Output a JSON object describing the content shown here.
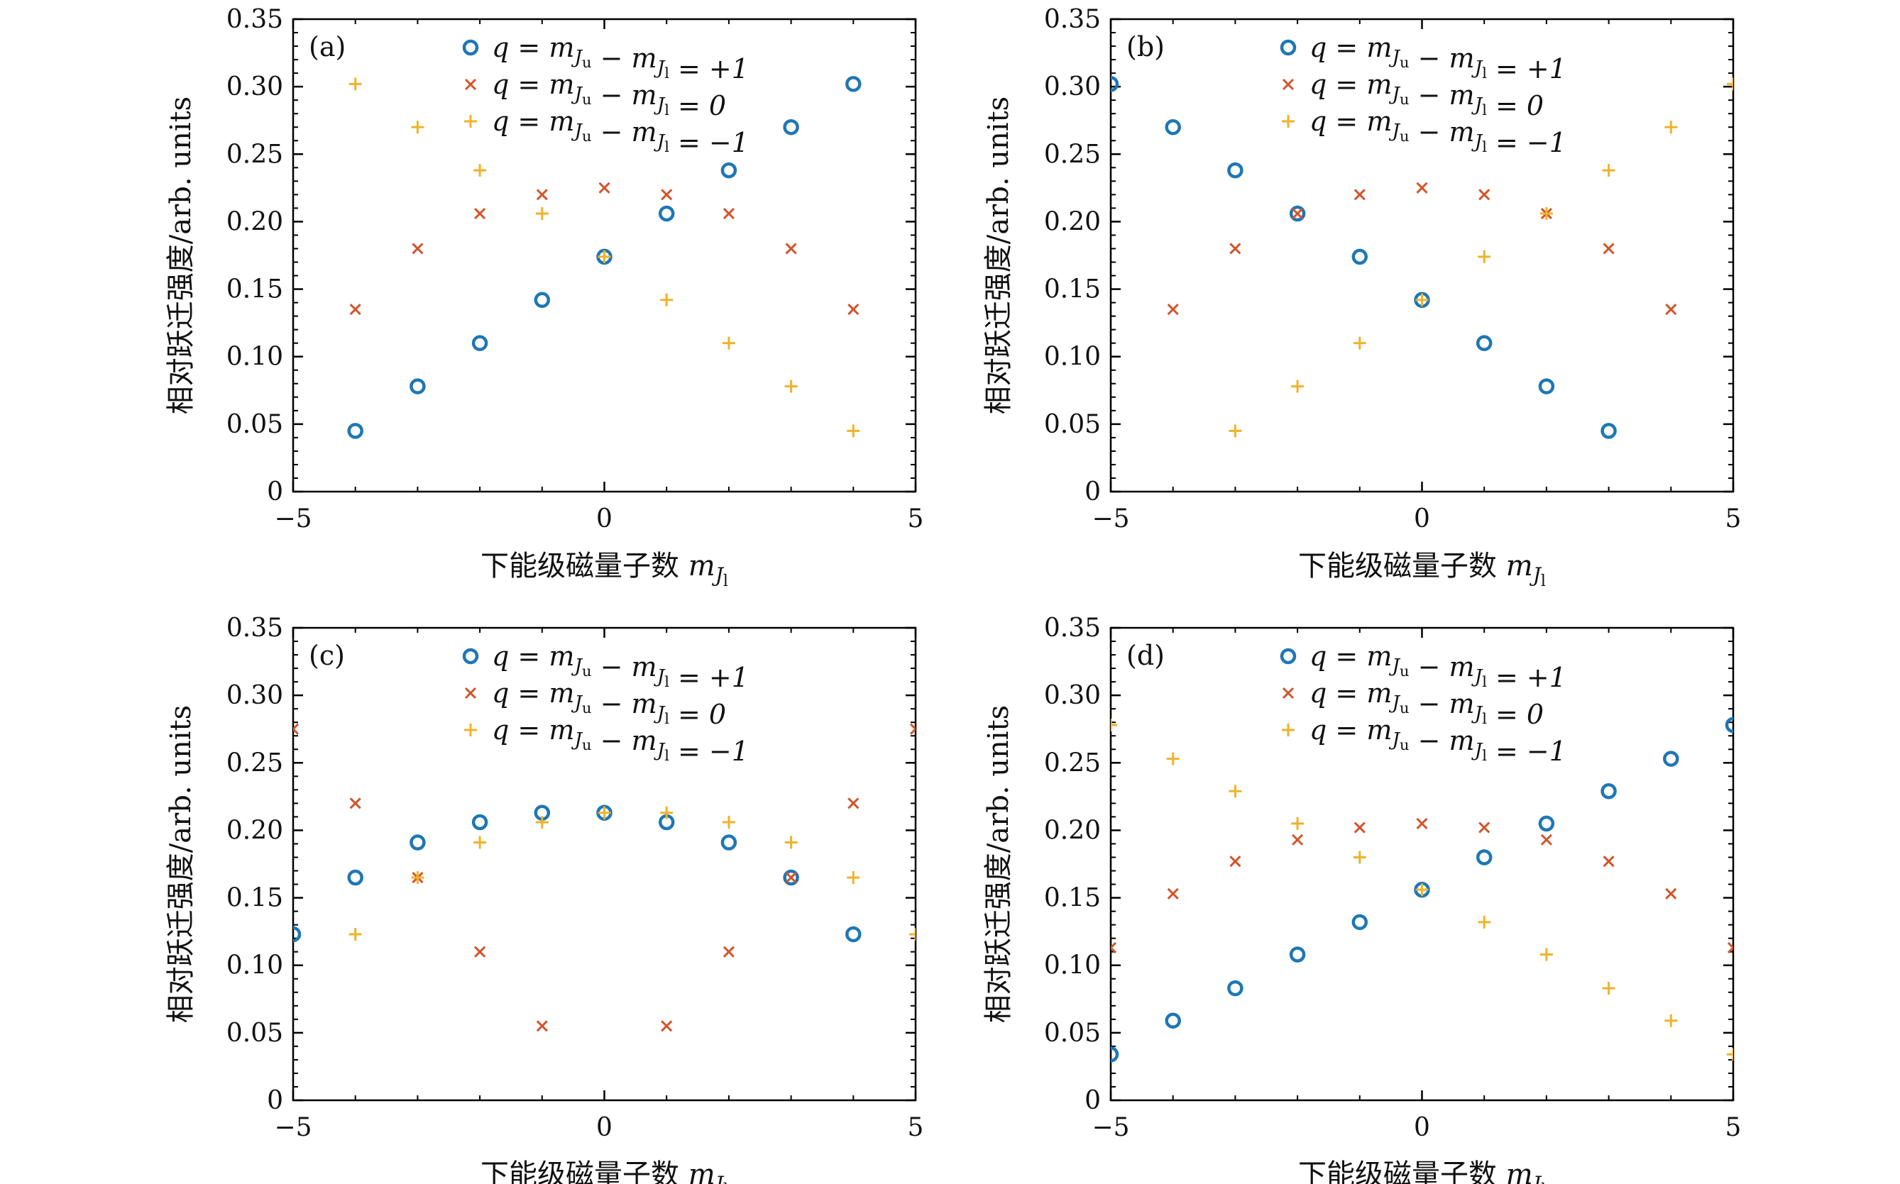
{
  "colors": {
    "q_plus1": "#1f77b4",
    "q_0": "#d2542a",
    "q_minus1": "#f0b22a"
  },
  "chart_data": [
    {
      "type": "scatter",
      "panel_label": "(a)",
      "xlabel": "下能级磁量子数 m_{J_l}",
      "ylabel": "相对跃迁强度/arb. units",
      "xlim": [
        -5,
        5
      ],
      "ylim": [
        0,
        0.35
      ],
      "xticks": [
        "−5",
        "0",
        "5"
      ],
      "yticks": [
        "0",
        "0.05",
        "0.10",
        "0.15",
        "0.20",
        "0.25",
        "0.30",
        "0.35"
      ],
      "legend_placement": "top-center",
      "series": [
        {
          "name": "q = m_{J_u} − m_{J_l} = +1",
          "marker": "circle",
          "x": [
            -4,
            -3,
            -2,
            -1,
            0,
            1,
            2,
            3,
            4
          ],
          "y": [
            0.045,
            0.078,
            0.11,
            0.142,
            0.174,
            0.206,
            0.238,
            0.27,
            0.302
          ]
        },
        {
          "name": "q = m_{J_u} − m_{J_l} = 0",
          "marker": "x",
          "x": [
            -4,
            -3,
            -2,
            -1,
            0,
            1,
            2,
            3,
            4
          ],
          "y": [
            0.135,
            0.18,
            0.206,
            0.22,
            0.225,
            0.22,
            0.206,
            0.18,
            0.135
          ]
        },
        {
          "name": "q = m_{J_u} − m_{J_l} = −1",
          "marker": "plus",
          "x": [
            -4,
            -3,
            -2,
            -1,
            0,
            1,
            2,
            3,
            4
          ],
          "y": [
            0.302,
            0.27,
            0.238,
            0.206,
            0.174,
            0.142,
            0.11,
            0.078,
            0.045
          ]
        }
      ]
    },
    {
      "type": "scatter",
      "panel_label": "(b)",
      "xlabel": "下能级磁量子数 m_{J_l}",
      "ylabel": "相对跃迁强度/arb. units",
      "xlim": [
        -5,
        5
      ],
      "ylim": [
        0,
        0.35
      ],
      "xticks": [
        "−5",
        "0",
        "5"
      ],
      "yticks": [
        "0",
        "0.05",
        "0.10",
        "0.15",
        "0.20",
        "0.25",
        "0.30",
        "0.35"
      ],
      "legend_placement": "top-center",
      "series": [
        {
          "name": "q = m_{J_u} − m_{J_l} = +1",
          "marker": "circle",
          "x": [
            -5,
            -4,
            -3,
            -2,
            -1,
            0,
            1,
            2,
            3
          ],
          "y": [
            0.302,
            0.27,
            0.238,
            0.206,
            0.174,
            0.142,
            0.11,
            0.078,
            0.045
          ]
        },
        {
          "name": "q = m_{J_u} − m_{J_l} = 0",
          "marker": "x",
          "x": [
            -4,
            -3,
            -2,
            -1,
            0,
            1,
            2,
            3,
            4
          ],
          "y": [
            0.135,
            0.18,
            0.206,
            0.22,
            0.225,
            0.22,
            0.206,
            0.18,
            0.135
          ]
        },
        {
          "name": "q = m_{J_u} − m_{J_l} = −1",
          "marker": "plus",
          "x": [
            -3,
            -2,
            -1,
            0,
            1,
            2,
            3,
            4,
            5
          ],
          "y": [
            0.045,
            0.078,
            0.11,
            0.142,
            0.174,
            0.206,
            0.238,
            0.27,
            0.302
          ]
        }
      ]
    },
    {
      "type": "scatter",
      "panel_label": "(c)",
      "xlabel": "下能级磁量子数 m_{J_l}",
      "ylabel": "相对跃迁强度/arb. units",
      "xlim": [
        -5,
        5
      ],
      "ylim": [
        0,
        0.35
      ],
      "xticks": [
        "−5",
        "0",
        "5"
      ],
      "yticks": [
        "0",
        "0.05",
        "0.10",
        "0.15",
        "0.20",
        "0.25",
        "0.30",
        "0.35"
      ],
      "legend_placement": "top-center",
      "series": [
        {
          "name": "q = m_{J_u} − m_{J_l} = +1",
          "marker": "circle",
          "x": [
            -5,
            -4,
            -3,
            -2,
            -1,
            0,
            1,
            2,
            3,
            4
          ],
          "y": [
            0.123,
            0.165,
            0.191,
            0.206,
            0.213,
            0.213,
            0.206,
            0.191,
            0.165,
            0.123
          ]
        },
        {
          "name": "q = m_{J_u} − m_{J_l} = 0",
          "marker": "x",
          "x": [
            -5,
            -4,
            -3,
            -2,
            -1,
            1,
            2,
            3,
            4,
            5
          ],
          "y": [
            0.275,
            0.22,
            0.165,
            0.11,
            0.055,
            0.055,
            0.11,
            0.165,
            0.22,
            0.275
          ]
        },
        {
          "name": "q = m_{J_u} − m_{J_l} = −1",
          "marker": "plus",
          "x": [
            -4,
            -3,
            -2,
            -1,
            0,
            1,
            2,
            3,
            4,
            5
          ],
          "y": [
            0.123,
            0.165,
            0.191,
            0.206,
            0.213,
            0.213,
            0.206,
            0.191,
            0.165,
            0.123
          ]
        }
      ]
    },
    {
      "type": "scatter",
      "panel_label": "(d)",
      "xlabel": "下能级磁量子数 m_{J_l}",
      "ylabel": "相对跃迁强度/arb. units",
      "xlim": [
        -5,
        5
      ],
      "ylim": [
        0,
        0.35
      ],
      "xticks": [
        "−5",
        "0",
        "5"
      ],
      "yticks": [
        "0",
        "0.05",
        "0.10",
        "0.15",
        "0.20",
        "0.25",
        "0.30",
        "0.35"
      ],
      "legend_placement": "top-center",
      "series": [
        {
          "name": "q = m_{J_u} − m_{J_l} = +1",
          "marker": "circle",
          "x": [
            -5,
            -4,
            -3,
            -2,
            -1,
            0,
            1,
            2,
            3,
            4,
            5
          ],
          "y": [
            0.034,
            0.059,
            0.083,
            0.108,
            0.132,
            0.156,
            0.18,
            0.205,
            0.229,
            0.253,
            0.278
          ]
        },
        {
          "name": "q = m_{J_u} − m_{J_l} = 0",
          "marker": "x",
          "x": [
            -5,
            -4,
            -3,
            -2,
            -1,
            0,
            1,
            2,
            3,
            4,
            5
          ],
          "y": [
            0.113,
            0.153,
            0.177,
            0.193,
            0.202,
            0.205,
            0.202,
            0.193,
            0.177,
            0.153,
            0.113
          ]
        },
        {
          "name": "q = m_{J_u} − m_{J_l} = −1",
          "marker": "plus",
          "x": [
            -5,
            -4,
            -3,
            -2,
            -1,
            0,
            1,
            2,
            3,
            4,
            5
          ],
          "y": [
            0.278,
            0.253,
            0.229,
            0.205,
            0.18,
            0.156,
            0.132,
            0.108,
            0.083,
            0.059,
            0.034
          ]
        }
      ]
    }
  ]
}
